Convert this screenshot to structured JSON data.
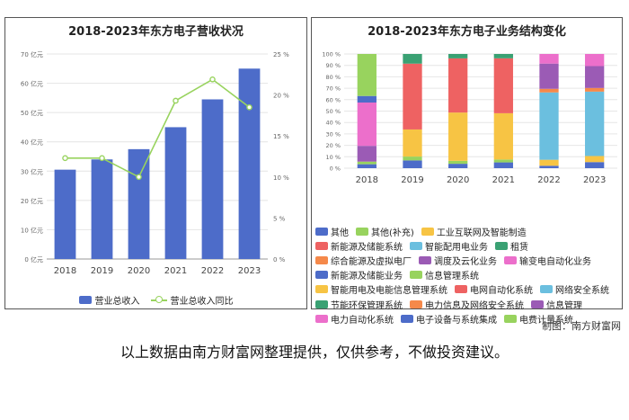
{
  "chart_data": [
    {
      "type": "bar",
      "title": "2018-2023年东方电子营收状况",
      "categories": [
        "2018",
        "2019",
        "2020",
        "2021",
        "2022",
        "2023"
      ],
      "series": [
        {
          "name": "营业总收入",
          "type": "bar",
          "axis": "left",
          "color": "#4d6cc9",
          "values": [
            30.5,
            34.0,
            37.5,
            45.0,
            54.5,
            65.0
          ]
        },
        {
          "name": "营业总收入同比",
          "type": "line",
          "axis": "right",
          "color": "#98d35e",
          "values": [
            12.3,
            12.3,
            10.0,
            19.3,
            21.9,
            18.5
          ]
        }
      ],
      "y_left": {
        "range": [
          0,
          70
        ],
        "ticks": [
          "0 亿元",
          "10 亿元",
          "20 亿元",
          "30 亿元",
          "40 亿元",
          "50 亿元",
          "60 亿元",
          "70 亿元"
        ]
      },
      "y_right": {
        "range": [
          0,
          25
        ],
        "ticks": [
          "0 %",
          "5 %",
          "10 %",
          "15 %",
          "20 %",
          "25 %"
        ]
      },
      "grid": true,
      "legend_position": "bottom"
    },
    {
      "type": "bar",
      "stacked": "percent",
      "title": "2018-2023年东方电子业务结构变化",
      "categories": [
        "2018",
        "2019",
        "2020",
        "2021",
        "2022",
        "2023"
      ],
      "y_ticks": [
        "0 %",
        "10 %",
        "20 %",
        "30 %",
        "40 %",
        "50 %",
        "60 %",
        "70 %",
        "80 %",
        "90 %",
        "100 %"
      ],
      "legend_position": "bottom",
      "series": [
        {
          "name": "其他",
          "color": "#4d6cc9",
          "values": [
            3,
            4,
            3,
            4,
            2,
            5
          ]
        },
        {
          "name": "其他(补充)",
          "color": "#98d35e",
          "values": [
            2,
            2,
            2,
            2,
            0,
            0
          ]
        },
        {
          "name": "工业互联网及智能制造",
          "color": "#f7c444",
          "values": [
            0,
            0,
            0,
            0,
            5,
            5
          ]
        },
        {
          "name": "新能源及储能系统",
          "color": "#ee6262",
          "values": [
            0,
            0,
            0,
            0,
            0,
            0
          ]
        },
        {
          "name": "智能配用电业务",
          "color": "#6bbfdf",
          "values": [
            0,
            0,
            0,
            0,
            56,
            53
          ]
        },
        {
          "name": "租赁",
          "color": "#3aa173",
          "values": [
            0,
            0,
            0,
            0,
            0,
            0
          ]
        },
        {
          "name": "综合能源及虚拟电厂",
          "color": "#f5894a",
          "values": [
            0,
            0,
            0,
            0,
            3,
            3
          ]
        },
        {
          "name": "调度及云化业务",
          "color": "#9b5bb5",
          "values": [
            0,
            0,
            0,
            0,
            21,
            18
          ]
        },
        {
          "name": "输变电自动化业务",
          "color": "#ec6fcb",
          "values": [
            0,
            0,
            0,
            0,
            8,
            10
          ]
        },
        {
          "name": "新能源及储能业务",
          "color": "#4d6cc9",
          "values": [
            0,
            0,
            0,
            0,
            0,
            0
          ]
        },
        {
          "name": "信息管理系统",
          "color": "#98d35e",
          "values": [
            0,
            0,
            0,
            0,
            0,
            0
          ]
        },
        {
          "name": "智能用电及电能信息管理系统",
          "color": "#f7c444",
          "values": [
            0,
            14,
            33,
            32,
            0,
            0
          ]
        },
        {
          "name": "电网自动化系统",
          "color": "#ee6262",
          "values": [
            0,
            34,
            37,
            38,
            0,
            0
          ]
        },
        {
          "name": "网络安全系统",
          "color": "#6bbfdf",
          "values": [
            0,
            0,
            0,
            0,
            0,
            0
          ]
        },
        {
          "name": "节能环保管理系统",
          "color": "#3aa173",
          "values": [
            0,
            5,
            3,
            3,
            0,
            0
          ]
        },
        {
          "name": "电力信息及网络安全系统",
          "color": "#f5894a",
          "values": [
            0,
            0,
            0,
            0,
            0,
            0
          ]
        },
        {
          "name": "信息管理",
          "color": "#9b5bb5",
          "values": [
            12,
            0,
            0,
            0,
            0,
            0
          ]
        },
        {
          "name": "电力自动化系统",
          "color": "#ec6fcb",
          "values": [
            33,
            0,
            0,
            0,
            0,
            0
          ]
        },
        {
          "name": "电子设备与系统集成",
          "color": "#4d6cc9",
          "values": [
            5,
            0,
            0,
            0,
            0,
            0
          ]
        },
        {
          "name": "电费计量系统",
          "color": "#98d35e",
          "values": [
            32,
            0,
            0,
            0,
            0,
            0
          ]
        }
      ],
      "legend_layout": [
        [
          "其他",
          "其他(补充)",
          "工业互联网及智能制造"
        ],
        [
          "新能源及储能系统",
          "智能配用电业务",
          "租赁"
        ],
        [
          "综合能源及虚拟电厂",
          "调度及云化业务",
          "输变电自动化业务"
        ],
        [
          "新能源及储能业务",
          "信息管理系统"
        ],
        [
          "智能用电及电能信息管理系统",
          "电网自动化系统",
          "网络安全系统"
        ],
        [
          "节能环保管理系统",
          "电力信息及网络安全系统",
          "信息管理"
        ],
        [
          "电力自动化系统",
          "电子设备与系统集成",
          "电费计量系统"
        ]
      ]
    }
  ],
  "footer": {
    "maker": "制图：南方财富网",
    "note": "以上数据由南方财富网整理提供，仅供参考，不做投资建议。"
  }
}
